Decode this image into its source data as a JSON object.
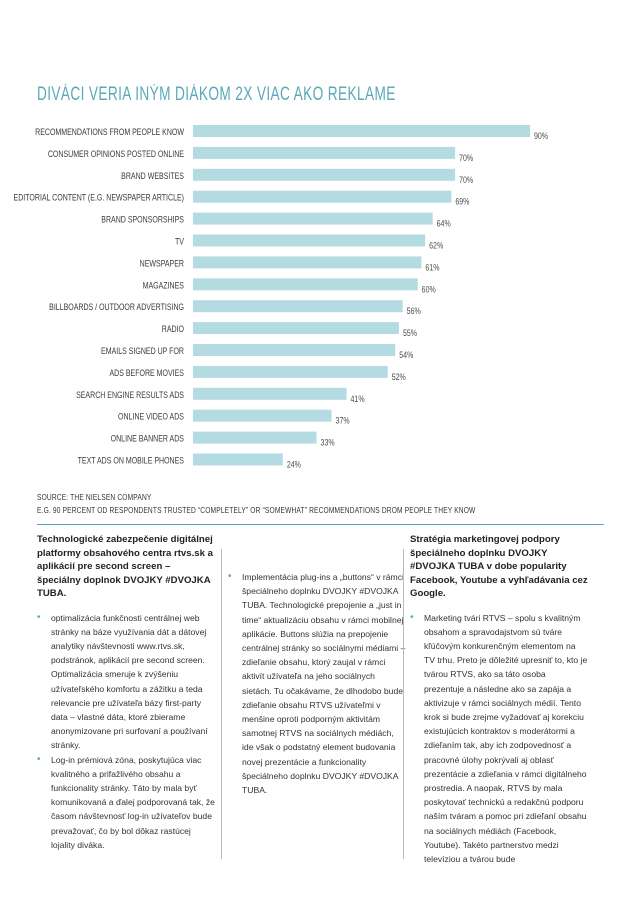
{
  "title": "DIVÁCI VERIA INÝM DIÁKOM 2X VIAC AKO REKLAME",
  "colors": {
    "accent": "#5aa9b9",
    "bar": "#b5dbe2"
  },
  "chart_data": {
    "type": "bar",
    "orientation": "horizontal",
    "title": "DIVÁCI VERIA INÝM DIÁKOM 2X VIAC AKO REKLAME",
    "categories": [
      "RECOMMENDATIONS FROM PEOPLE KNOW",
      "CONSUMER OPINIONS POSTED ONLINE",
      "BRAND WEBSITES",
      "EDITORIAL CONTENT (E.G. NEWSPAPER ARTICLE)",
      "BRAND SPONSORSHIPS",
      "TV",
      "NEWSPAPER",
      "MAGAZINES",
      "BILLBOARDS / OUTDOOR ADVERTISING",
      "RADIO",
      "EMAILS SIGNED UP FOR",
      "ADS BEFORE MOVIES",
      "SEARCH ENGINE RESULTS ADS",
      "ONLINE VIDEO ADS",
      "ONLINE BANNER ADS",
      "TEXT ADS ON MOBILE PHONES"
    ],
    "values": [
      90,
      70,
      70,
      69,
      64,
      62,
      61,
      60,
      56,
      55,
      54,
      52,
      41,
      37,
      33,
      24
    ],
    "labels": [
      "90%",
      "70%",
      "70%",
      "69%",
      "64%",
      "62%",
      "61%",
      "60%",
      "56%",
      "55%",
      "54%",
      "52%",
      "41%",
      "37%",
      "33%",
      "24%"
    ],
    "xlim": [
      0,
      100
    ]
  },
  "source": {
    "line1": "SOURCE: THE NIELSEN COMPANY",
    "line2": "E.G. 90 PERCENT OD RESPONDENTS TRUSTED “COMPLETELY” OR “SOMEWHAT” RECOMMENDATIONS DROM PEOPLE THEY KNOW"
  },
  "col1": {
    "heading": "Technologické zabezpečenie digitálnej platformy obsahového centra rtvs.sk a aplikácií pre second screen – špeciálny doplnok DVOJKY #DVOJKA TUBA.",
    "bullets": [
      "optimalizácia funkčnosti centrálnej web stránky na báze využívania dát a dátovej analytiky návštevnosti www.rtvs.sk, podstránok, aplikácií pre second screen. Optimalizácia smeruje k zvýšeniu užívateľského komfortu a zážitku a teda relevancie pre užívateľa bázy first-party data – vlastné dáta, ktoré zbierame anonymizovane pri surfovaní a používaní stránky.",
      "Log-in prémiová zóna, poskytujúca viac kvalitného a prifažlivého obsahu a funkcionality stránky. Táto by mala byť komunikovaná a ďalej podporovaná tak, že časom návštevnosť log-in užívateľov bude prevažovať, čo by bol dôkaz rastúcej lojality diváka."
    ]
  },
  "col2": {
    "bullets": [
      "Implementácia plug-ins a „buttons“ v rámci špeciálneho doplnku DVOJKY #DVOJKA TUBA. Technologické prepojenie a „just in time“ aktualizáciu obsahu v rámci mobilnej aplikácie. Buttons slúžia na prepojenie centrálnej stránky so sociálnymi médiami – zdieľanie obsahu, ktorý zaujal v rámci aktivít užívateľa na jeho sociálnych sietách. Tu očakávame, že dlhodobo bude zdieľanie obsahu RTVS užívateľmi v menšine oproti podporným aktivitám samotnej RTVS na sociálnych médiách, ide však o podstatný element budovania novej prezentácie a funkcionality špeciálneho doplnku DVOJKY #DVOJKA TUBA."
    ]
  },
  "col3": {
    "heading": "Stratégia marketingovej podpory špeciálneho doplnku DVOJKY #DVOJKA TUBA v dobe popularity Facebook, Youtube a vyhľadávania cez Google.",
    "bullets": [
      "Marketing tvári RTVS – spolu s kvalitným obsahom a spravodajstvom sú tváre kľúčovým konkurenčným elementom na TV trhu. Preto je dôležité upresniť to, kto je tvárou RTVS, ako sa táto osoba prezentuje a následne ako sa zapája a aktivizuje v rámci sociálnych médií. Tento krok si bude zrejme vyžadovať aj korekciu existujúcich kontraktov s moderátormi a zdieľaním tak, aby ich zodpovednosť a pracovné úlohy pokrývali aj oblasť prezentácie a zdieľania v rámci digitálneho prostredia. A naopak, RTVS by mala poskytovať technickú a redakčnú podporu naším tváram a pomoc pri zdieľaní obsahu na sociálnych médiách (Facebook, Youtube). Takéto partnerstvo medzi televíziou a tvárou bude"
    ]
  }
}
